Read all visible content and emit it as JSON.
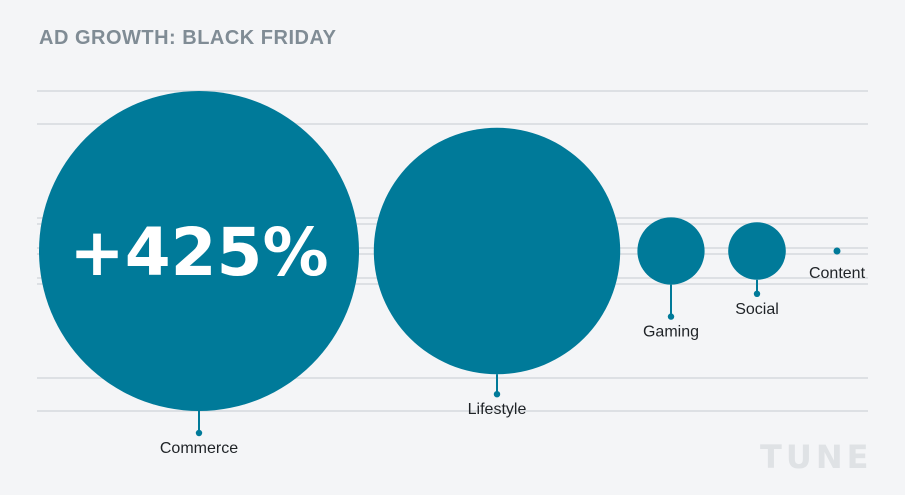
{
  "title": "AD GROWTH: BLACK FRIDAY",
  "logo": "TUNE",
  "colors": {
    "bubble": "#007a99",
    "gridline": "#dde0e4",
    "background": "#f4f5f7",
    "title": "#808c95"
  },
  "chart_data": {
    "type": "bubble",
    "title": "AD GROWTH: BLACK FRIDAY",
    "categories": [
      "Commerce",
      "Lifestyle",
      "Gaming",
      "Social",
      "Content"
    ],
    "relative_size": [
      1.0,
      0.77,
      0.21,
      0.18,
      0.02
    ],
    "annotations": [
      {
        "category": "Commerce",
        "text": "+425%"
      }
    ],
    "grid": true,
    "legend": "none"
  }
}
